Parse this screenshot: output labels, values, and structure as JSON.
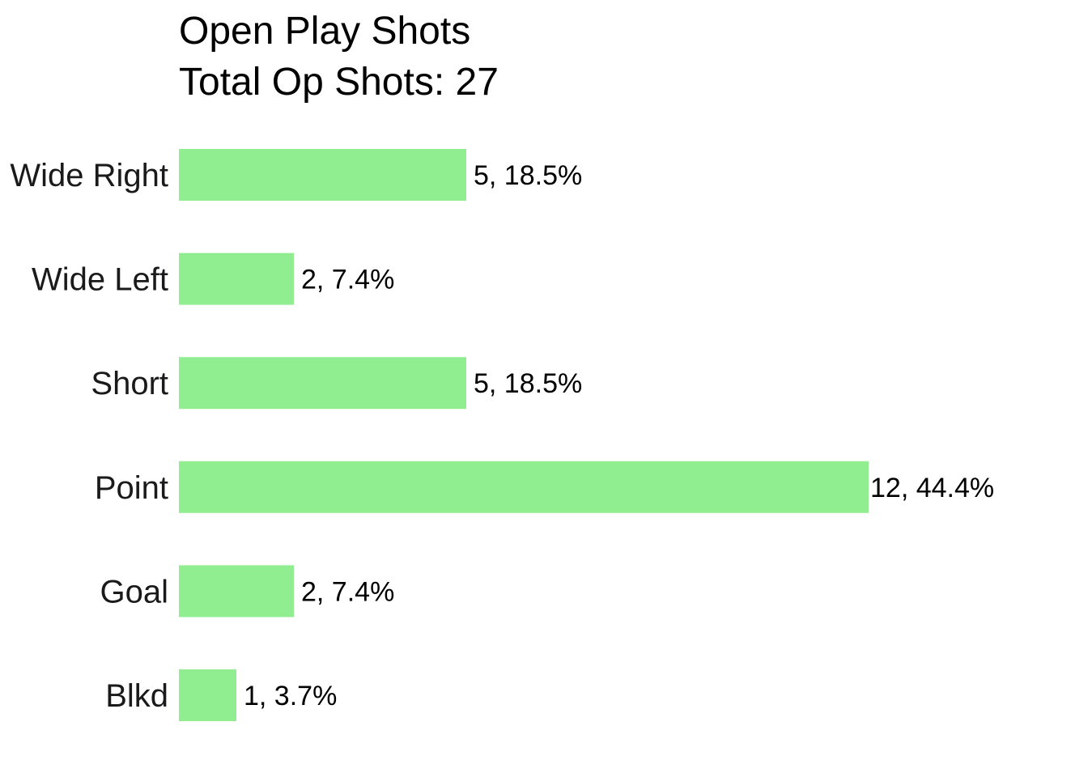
{
  "chart_data": {
    "type": "bar",
    "orientation": "horizontal",
    "title": "Open Play Shots",
    "subtitle": "Total Op Shots: 27",
    "xlabel": "",
    "ylabel": "",
    "grid": false,
    "legend": "none",
    "bar_color": "#90EE90",
    "categories": [
      "Wide Right",
      "Wide Left",
      "Short",
      "Point",
      "Goal",
      "Blkd"
    ],
    "values": [
      5,
      2,
      5,
      12,
      2,
      1
    ],
    "data_labels": [
      "5, 18.5%",
      "2, 7.4%",
      "5, 18.5%",
      "12, 44.4%",
      "2, 7.4%",
      "1, 3.7%"
    ],
    "xlim": [
      0,
      12
    ]
  }
}
